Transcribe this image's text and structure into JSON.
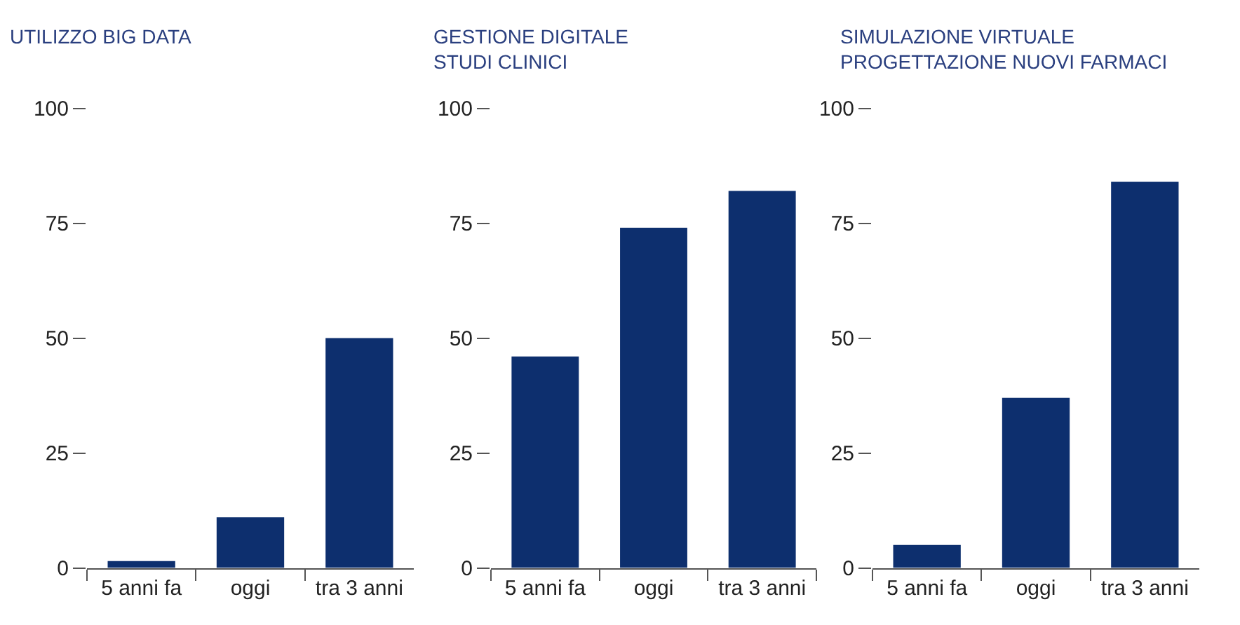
{
  "chart_data": [
    {
      "type": "bar",
      "title": "UTILIZZO BIG DATA",
      "categories": [
        "5 anni fa",
        "oggi",
        "tra 3 anni"
      ],
      "values": [
        1.5,
        11,
        50
      ],
      "color": "#0d2f6e",
      "ylim": [
        0,
        100
      ],
      "yticks": [
        0,
        25,
        50,
        75,
        100
      ],
      "grid": false,
      "legend": false
    },
    {
      "type": "bar",
      "title": "GESTIONE DIGITALE\nSTUDI CLINICI",
      "categories": [
        "5 anni fa",
        "oggi",
        "tra 3 anni"
      ],
      "values": [
        46,
        74,
        82
      ],
      "color": "#0d2f6e",
      "ylim": [
        0,
        100
      ],
      "yticks": [
        0,
        25,
        50,
        75,
        100
      ],
      "grid": false,
      "legend": false
    },
    {
      "type": "bar",
      "title": "SIMULAZIONE VIRTUALE\nPROGETTAZIONE NUOVI FARMACI",
      "categories": [
        "5 anni fa",
        "oggi",
        "tra 3 anni"
      ],
      "values": [
        5,
        37,
        84
      ],
      "color": "#0d2f6e",
      "ylim": [
        0,
        100
      ],
      "yticks": [
        0,
        25,
        50,
        75,
        100
      ],
      "grid": false,
      "legend": false
    }
  ]
}
